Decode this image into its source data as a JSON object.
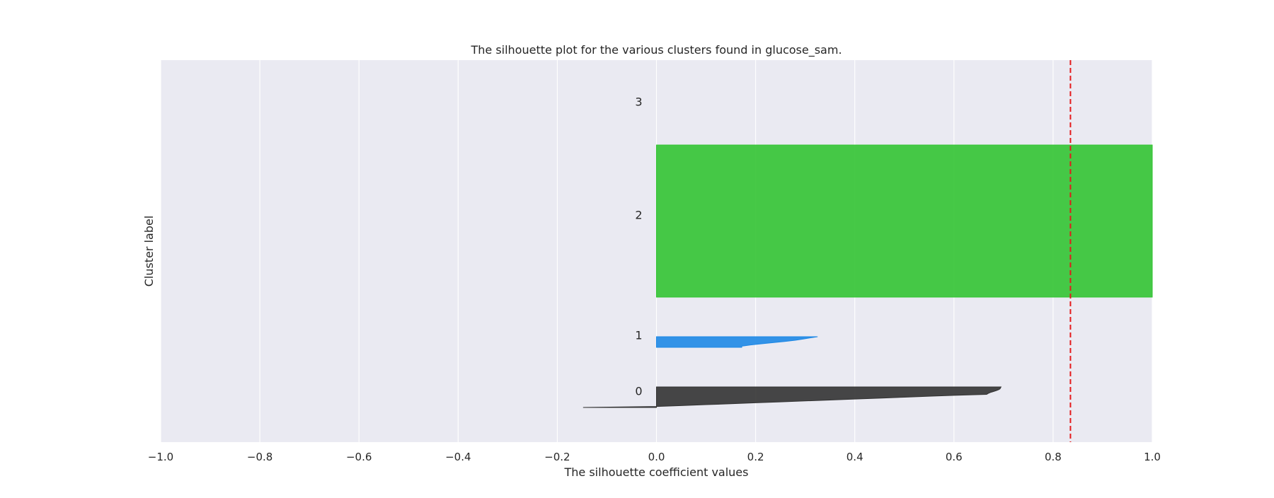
{
  "chart_data": {
    "type": "area",
    "title": "The silhouette plot for the various clusters found in glucose_sam.",
    "xlabel": "The silhouette coefficient values",
    "ylabel": "Cluster label",
    "xlim": [
      -1.0,
      1.0
    ],
    "x_ticks": [
      -1.0,
      -0.8,
      -0.6,
      -0.4,
      -0.2,
      0.0,
      0.2,
      0.4,
      0.6,
      0.8,
      1.0
    ],
    "x_tick_labels": [
      "−1.0",
      "−0.8",
      "−0.6",
      "−0.4",
      "−0.2",
      "0.0",
      "0.2",
      "0.4",
      "0.6",
      "0.8",
      "1.0"
    ],
    "grid": true,
    "average_silhouette_score": 0.835,
    "average_line_color": "#e41a1c",
    "series": [
      {
        "cluster_label": "0",
        "color": "#333333",
        "profile_from_top_row": [
          0.695,
          0.694,
          0.693,
          0.69,
          0.685,
          0.679,
          0.673,
          0.669,
          0.666,
          0.6,
          0.55,
          0.5,
          0.45,
          0.4,
          0.35,
          0.3,
          0.25,
          0.2,
          0.15,
          0.1,
          0.05,
          0.0,
          -0.148
        ]
      },
      {
        "cluster_label": "1",
        "color": "#1e88e5",
        "profile_from_top_row": [
          0.325,
          0.31,
          0.295,
          0.28,
          0.26,
          0.235,
          0.212,
          0.19,
          0.172,
          0.172
        ]
      },
      {
        "cluster_label": "2",
        "color": "#33c433",
        "profile_from_top_row": [
          1.0,
          1.0,
          1.0,
          1.0,
          1.0,
          1.0,
          1.0,
          1.0,
          1.0,
          1.0,
          1.0,
          1.0
        ]
      },
      {
        "cluster_label": "3",
        "color": "#ff9900",
        "profile_from_top_row": []
      }
    ]
  }
}
